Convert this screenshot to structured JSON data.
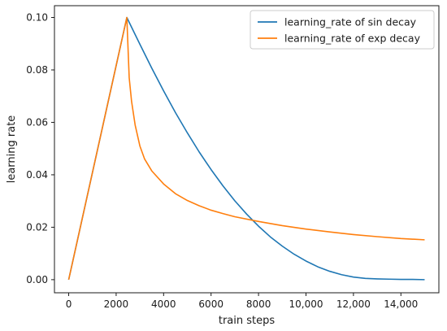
{
  "chart_data": {
    "type": "line",
    "title": "",
    "xlabel": "train steps",
    "ylabel": "learning rate",
    "xlim": [
      -600,
      15600
    ],
    "ylim": [
      -0.005,
      0.1045
    ],
    "xticks": [
      0,
      2000,
      4000,
      6000,
      8000,
      10000,
      12000,
      14000
    ],
    "xtick_labels": [
      "0",
      "2000",
      "4000",
      "6000",
      "8000",
      "10,000",
      "12,000",
      "14,000"
    ],
    "yticks": [
      0.0,
      0.02,
      0.04,
      0.06,
      0.08,
      0.1
    ],
    "ytick_labels": [
      "0.00",
      "0.02",
      "0.04",
      "0.06",
      "0.08",
      "0.10"
    ],
    "grid": false,
    "legend_position": "top-right",
    "series": [
      {
        "name": "learning_rate of sin decay",
        "color": "#1f77b4",
        "x": [
          0,
          2450,
          3000,
          3500,
          4000,
          4500,
          5000,
          5500,
          6000,
          6500,
          7000,
          7500,
          8000,
          8500,
          9000,
          9500,
          10000,
          10500,
          11000,
          11500,
          12000,
          12500,
          13000,
          13500,
          14000,
          14500,
          15000
        ],
        "y": [
          0.0,
          0.1,
          0.0898,
          0.0807,
          0.072,
          0.0637,
          0.056,
          0.0487,
          0.042,
          0.0358,
          0.0301,
          0.025,
          0.0204,
          0.0163,
          0.0128,
          0.0097,
          0.0071,
          0.0049,
          0.0032,
          0.0019,
          0.001,
          0.0005,
          0.0003,
          0.0002,
          0.0001,
          0.0001,
          0.0
        ]
      },
      {
        "name": "learning_rate of exp decay",
        "color": "#ff7f0e",
        "x": [
          0,
          2450,
          2550,
          2650,
          2800,
          3000,
          3200,
          3500,
          4000,
          4500,
          5000,
          5500,
          6000,
          6500,
          7000,
          8000,
          9000,
          10000,
          11000,
          12000,
          13000,
          14000,
          15000
        ],
        "y": [
          0.0,
          0.1,
          0.077,
          0.068,
          0.059,
          0.051,
          0.046,
          0.0415,
          0.0365,
          0.0328,
          0.0302,
          0.0282,
          0.0265,
          0.0252,
          0.024,
          0.0222,
          0.0206,
          0.0193,
          0.0182,
          0.0172,
          0.0164,
          0.0157,
          0.0152
        ]
      }
    ]
  }
}
